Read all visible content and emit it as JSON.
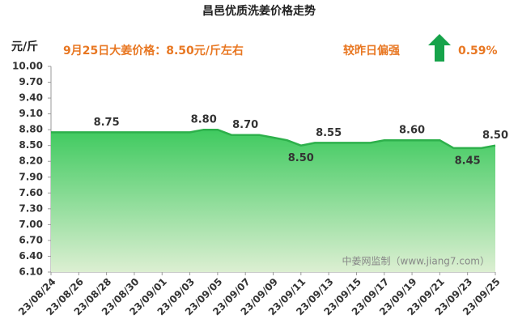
{
  "chart_data": {
    "type": "area",
    "title": "昌邑优质洗姜价格走势",
    "y_label": "元/斤",
    "annotation": "9月25日大姜价格：8.50元/斤左右",
    "trend_text": "较昨日偏强",
    "trend_change": "0.59%",
    "watermark": "中姜网监制（www.jiang7.com）",
    "categories": [
      "23/08/24",
      null,
      "23/08/26",
      null,
      "23/08/28",
      null,
      "23/08/30",
      null,
      "23/09/01",
      null,
      "23/09/03",
      null,
      "23/09/05",
      null,
      "23/09/07",
      null,
      "23/09/09",
      null,
      "23/09/11",
      null,
      "23/09/13",
      null,
      "23/09/15",
      null,
      "23/09/17",
      null,
      "23/09/19",
      null,
      "23/09/21",
      null,
      "23/09/23",
      null,
      "23/09/25"
    ],
    "values": [
      8.75,
      8.75,
      8.75,
      8.75,
      8.75,
      8.75,
      8.75,
      8.75,
      8.75,
      8.75,
      8.75,
      8.8,
      8.8,
      8.7,
      8.7,
      8.7,
      8.65,
      8.6,
      8.5,
      8.55,
      8.55,
      8.55,
      8.55,
      8.55,
      8.6,
      8.6,
      8.6,
      8.6,
      8.6,
      8.45,
      8.45,
      8.45,
      8.5
    ],
    "value_labels": [
      null,
      null,
      null,
      null,
      "8.75",
      null,
      null,
      null,
      null,
      null,
      null,
      "8.80",
      null,
      null,
      "8.70",
      null,
      null,
      null,
      "8.50",
      null,
      "8.55",
      null,
      null,
      null,
      null,
      null,
      "8.60",
      null,
      null,
      null,
      "8.45",
      null,
      "8.50"
    ],
    "color": "#2db04b",
    "ylim": [
      6.1,
      10.0
    ],
    "yticks": [
      {
        "value": 6.1,
        "label": "6.10"
      },
      {
        "value": 6.4,
        "label": "6.40"
      },
      {
        "value": 6.7,
        "label": "6.70"
      },
      {
        "value": 7.0,
        "label": "7.00"
      },
      {
        "value": 7.3,
        "label": "7.30"
      },
      {
        "value": 7.6,
        "label": "7.60"
      },
      {
        "value": 7.9,
        "label": "7.90"
      },
      {
        "value": 8.2,
        "label": "8.20"
      },
      {
        "value": 8.5,
        "label": "8.50"
      },
      {
        "value": 8.8,
        "label": "8.80"
      },
      {
        "value": 9.1,
        "label": "9.10"
      },
      {
        "value": 9.4,
        "label": "9.40"
      },
      {
        "value": 9.7,
        "label": "9.70"
      },
      {
        "value": 10.0,
        "label": "10.00"
      }
    ]
  }
}
